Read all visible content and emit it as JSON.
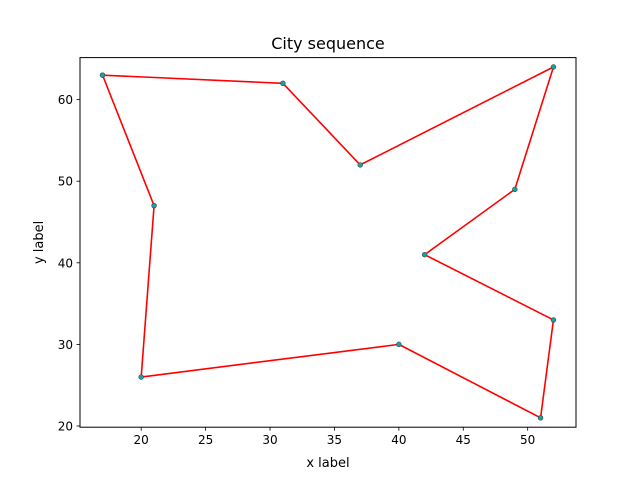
{
  "chart_data": {
    "type": "line",
    "title": "City sequence",
    "xlabel": "x label",
    "ylabel": "y label",
    "xlim": [
      15.25,
      53.75
    ],
    "ylim": [
      19.85,
      65.15
    ],
    "xticks": [
      20,
      25,
      30,
      35,
      40,
      45,
      50
    ],
    "yticks": [
      20,
      30,
      40,
      50,
      60
    ],
    "grid": false,
    "legend": "none",
    "series": [
      {
        "line_color": "#ff0000",
        "marker_color": "#1f9f9f",
        "points": [
          {
            "x": 17,
            "y": 63
          },
          {
            "x": 31,
            "y": 62
          },
          {
            "x": 37,
            "y": 52
          },
          {
            "x": 52,
            "y": 64
          },
          {
            "x": 49,
            "y": 49
          },
          {
            "x": 42,
            "y": 41
          },
          {
            "x": 52,
            "y": 33
          },
          {
            "x": 51,
            "y": 21
          },
          {
            "x": 40,
            "y": 30
          },
          {
            "x": 20,
            "y": 26
          },
          {
            "x": 21,
            "y": 47
          },
          {
            "x": 17,
            "y": 63
          }
        ]
      }
    ]
  }
}
